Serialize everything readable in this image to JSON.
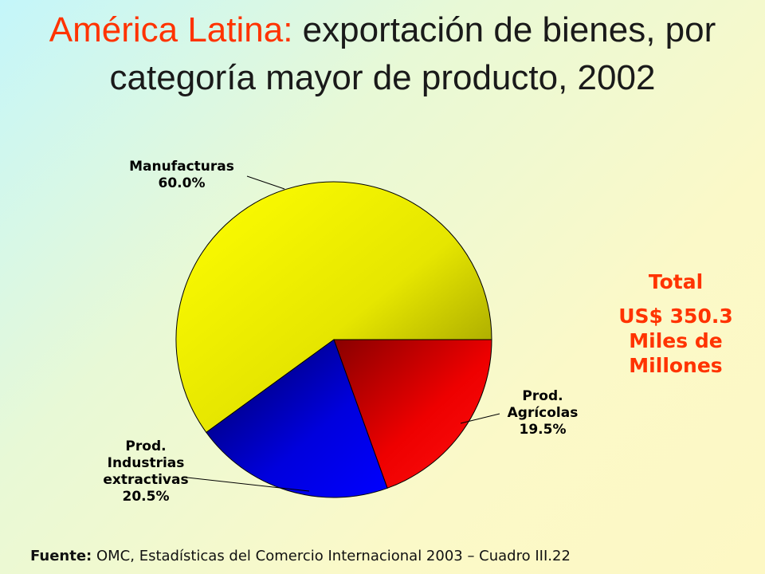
{
  "title": {
    "region": "América Latina:",
    "text": "exportación de bienes, por categoría mayor de producto, 2002"
  },
  "chart_data": {
    "type": "pie",
    "title": "América Latina: exportación de bienes, por categoría mayor de producto, 2002",
    "slices": [
      {
        "label": [
          "Manufacturas"
        ],
        "value": 60.0,
        "value_label": "60.0%",
        "color": "#e6e600"
      },
      {
        "label": [
          "Prod.",
          "Agrícolas"
        ],
        "value": 19.5,
        "value_label": "19.5%",
        "color": "#e60000"
      },
      {
        "label": [
          "Prod.",
          "Industrias",
          "extractivas"
        ],
        "value": 20.5,
        "value_label": "20.5%",
        "color": "#0000cc"
      }
    ]
  },
  "total": {
    "heading": "Total",
    "amount": "US$ 350.3",
    "unit_line1": "Miles de",
    "unit_line2": "Millones"
  },
  "source": {
    "label": "Fuente:",
    "text": "OMC, Estadísticas del Comercio Internacional 2003 – Cuadro III.22"
  },
  "colors": {
    "accent": "#ff3300",
    "manufacturas": "#e6e600",
    "agricolas": "#e60000",
    "extractivas": "#0000cc"
  }
}
